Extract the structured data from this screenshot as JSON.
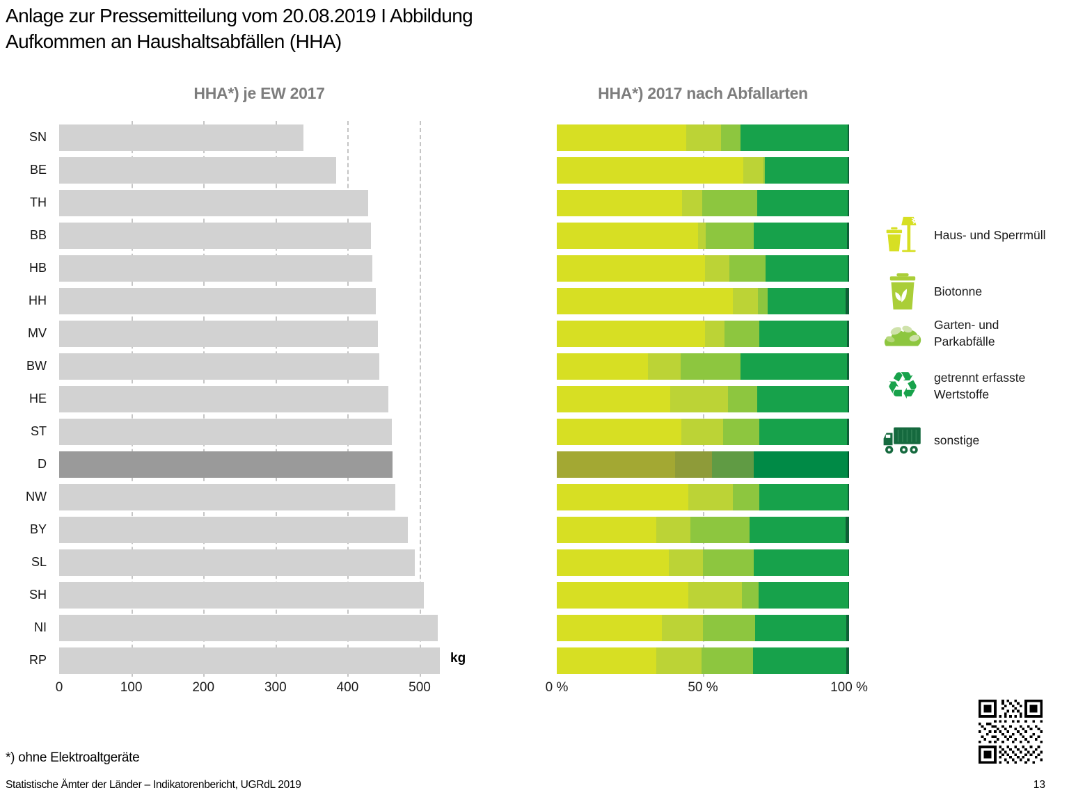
{
  "page": {
    "title_line1": "Anlage zur Pressemitteilung vom 20.08.2019 I Abbildung",
    "title_line2": "Aufkommen an Haushaltsabfällen (HHA)",
    "footnote": "*) ohne Elektroaltgeräte",
    "source": "Statistische Ämter der Länder – Indikatorenbericht, UGRdL 2019",
    "page_number": "13"
  },
  "legend": {
    "items": [
      {
        "icon": "waste-bin-and-lamp-icon",
        "label": "Haus- und Sperrmüll",
        "color": "#d7df23"
      },
      {
        "icon": "bio-bin-icon",
        "label": "Biotonne",
        "color": "#aace38"
      },
      {
        "icon": "leaf-pile-icon",
        "label": "Garten- und Parkabfälle",
        "color": "#8dc63f"
      },
      {
        "icon": "recycling-icon",
        "label": "getrennt erfasste Wertstoffe",
        "color": "#18a24b"
      },
      {
        "icon": "garbage-truck-icon",
        "label": "sonstige",
        "color": "#15693e"
      }
    ]
  },
  "chart_data": [
    {
      "type": "bar",
      "orientation": "horizontal",
      "title": "HHA*) je EW 2017",
      "unit": "kg",
      "categories": [
        "SN",
        "BE",
        "TH",
        "BB",
        "HB",
        "HH",
        "MV",
        "BW",
        "HE",
        "ST",
        "D",
        "NW",
        "BY",
        "SL",
        "SH",
        "NI",
        "RP"
      ],
      "values": [
        339,
        384,
        429,
        432,
        434,
        439,
        442,
        444,
        457,
        461,
        462,
        466,
        484,
        493,
        506,
        525,
        528
      ],
      "xlim": [
        0,
        555
      ],
      "xticks": [
        0,
        100,
        200,
        300,
        400,
        500
      ],
      "grid": "vertical-dashed",
      "bar_color": "#d2d2d2",
      "highlight_category": "D",
      "highlight_color": "#9a9a9a"
    },
    {
      "type": "bar",
      "subtype": "stacked-100-percent",
      "orientation": "horizontal",
      "title": "HHA*) 2017 nach Abfallarten",
      "categories": [
        "SN",
        "BE",
        "TH",
        "BB",
        "HB",
        "HH",
        "MV",
        "BW",
        "HE",
        "ST",
        "D",
        "NW",
        "BY",
        "SL",
        "SH",
        "NI",
        "RP"
      ],
      "series": [
        {
          "name": "Haus- und Sperrmüll",
          "color": "#d7df23",
          "highlight_color": "#a3a833",
          "values": [
            44.3,
            63.8,
            42.9,
            48.4,
            50.6,
            60.2,
            50.6,
            31.3,
            38.7,
            42.5,
            40.5,
            45.1,
            34.1,
            38.3,
            45.1,
            35.9,
            34.1
          ]
        },
        {
          "name": "Biotonne",
          "color": "#bcd336",
          "highlight_color": "#8e9b39",
          "values": [
            11.8,
            6.9,
            6.9,
            2.6,
            8.5,
            8.5,
            6.9,
            11.0,
            19.9,
            14.5,
            12.7,
            15.2,
            11.7,
            11.7,
            18.2,
            14.1,
            15.5
          ]
        },
        {
          "name": "Garten- und Parkabfälle",
          "color": "#8dc63f",
          "highlight_color": "#609b44",
          "values": [
            6.8,
            0.5,
            18.7,
            16.3,
            12.3,
            3.4,
            11.9,
            20.6,
            9.9,
            12.4,
            14.1,
            9.1,
            20.2,
            17.3,
            5.7,
            17.9,
            17.5
          ]
        },
        {
          "name": "getrennt erfasste Wertstoffe",
          "color": "#17a24b",
          "highlight_color": "#008a46",
          "values": [
            36.6,
            28.3,
            31.0,
            32.1,
            28.1,
            26.7,
            29.8,
            36.3,
            31.1,
            30.0,
            32.2,
            30.2,
            32.8,
            32.5,
            30.8,
            31.1,
            31.9
          ]
        },
        {
          "name": "sonstige",
          "color": "#0e5f36",
          "highlight_color": "#00502c",
          "values": [
            0.5,
            0.5,
            0.5,
            0.6,
            0.5,
            1.2,
            0.8,
            0.8,
            0.4,
            0.6,
            0.5,
            0.4,
            1.2,
            0.2,
            0.2,
            1.0,
            1.0
          ]
        }
      ],
      "xticks": [
        0,
        50,
        100
      ],
      "xtick_labels": [
        "0 %",
        "50 %",
        "100 %"
      ],
      "grid_ticks": [
        50
      ],
      "grid": "vertical-dashed-at-50",
      "highlight_category": "D"
    }
  ]
}
